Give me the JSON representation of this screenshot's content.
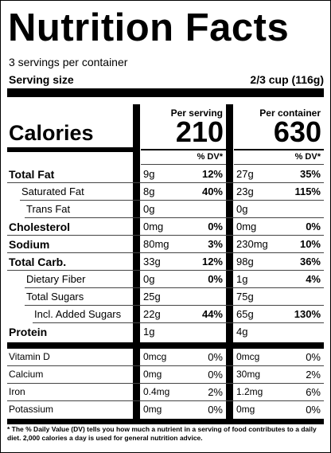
{
  "title": "Nutrition Facts",
  "servings": "3 servings per container",
  "serving_size": {
    "label": "Serving size",
    "value": "2/3 cup (116g)"
  },
  "calories_label": "Calories",
  "columns": [
    {
      "header": "Per serving",
      "calories": "210",
      "dv_header": "% DV*"
    },
    {
      "header": "Per container",
      "calories": "630",
      "dv_header": "% DV*"
    }
  ],
  "nutrients": [
    {
      "name": "Total Fat",
      "per_serving": {
        "amount": "9g",
        "dv": "12%"
      },
      "per_container": {
        "amount": "27g",
        "dv": "35%"
      }
    },
    {
      "name": "Saturated Fat",
      "per_serving": {
        "amount": "8g",
        "dv": "40%"
      },
      "per_container": {
        "amount": "23g",
        "dv": "115%"
      }
    },
    {
      "name": "Trans Fat",
      "per_serving": {
        "amount": "0g"
      },
      "per_container": {
        "amount": "0g"
      }
    },
    {
      "name": "Cholesterol",
      "per_serving": {
        "amount": "0mg",
        "dv": "0%"
      },
      "per_container": {
        "amount": "0mg",
        "dv": "0%"
      }
    },
    {
      "name": "Sodium",
      "per_serving": {
        "amount": "80mg",
        "dv": "3%"
      },
      "per_container": {
        "amount": "230mg",
        "dv": "10%"
      }
    },
    {
      "name": "Total Carb.",
      "per_serving": {
        "amount": "33g",
        "dv": "12%"
      },
      "per_container": {
        "amount": "98g",
        "dv": "36%"
      }
    },
    {
      "name": "Dietary Fiber",
      "per_serving": {
        "amount": "0g",
        "dv": "0%"
      },
      "per_container": {
        "amount": "1g",
        "dv": "4%"
      }
    },
    {
      "name": "Total Sugars",
      "per_serving": {
        "amount": "25g"
      },
      "per_container": {
        "amount": "75g"
      }
    },
    {
      "name": "Incl. Added Sugars",
      "per_serving": {
        "amount": "22g",
        "dv": "44%"
      },
      "per_container": {
        "amount": "65g",
        "dv": "130%"
      }
    },
    {
      "name": "Protein",
      "per_serving": {
        "amount": "1g"
      },
      "per_container": {
        "amount": "4g"
      }
    },
    {
      "name": "Vitamin D",
      "per_serving": {
        "amount": "0mcg",
        "dv": "0%"
      },
      "per_container": {
        "amount": "0mcg",
        "dv": "0%"
      }
    },
    {
      "name": "Calcium",
      "per_serving": {
        "amount": "0mg",
        "dv": "0%"
      },
      "per_container": {
        "amount": "30mg",
        "dv": "2%"
      }
    },
    {
      "name": "Iron",
      "per_serving": {
        "amount": "0.4mg",
        "dv": "2%"
      },
      "per_container": {
        "amount": "1.2mg",
        "dv": "6%"
      }
    },
    {
      "name": "Potassium",
      "per_serving": {
        "amount": "0mg",
        "dv": "0%"
      },
      "per_container": {
        "amount": "0mg",
        "dv": "0%"
      }
    }
  ],
  "footnote": "* The % Daily Value (DV) tells you how much a nutrient in a serving of food contributes to a daily diet. 2,000 calories a day is used for general nutrition advice."
}
